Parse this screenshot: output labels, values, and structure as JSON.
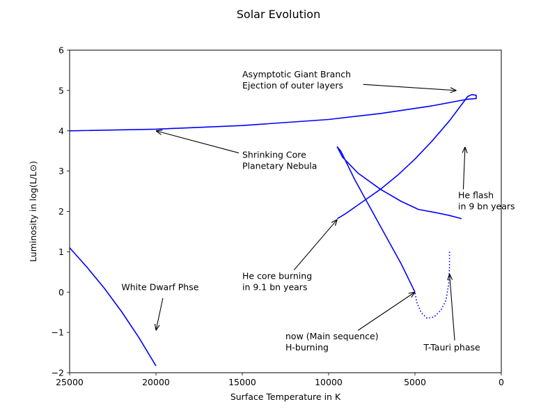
{
  "chart_data": {
    "type": "line",
    "title": "Solar Evolution",
    "xlabel": "Surface Temperature in K",
    "ylabel": "Luminosity in log(L/L⊙)",
    "xlim": [
      25000,
      0
    ],
    "ylim": [
      -2,
      6
    ],
    "x_inverted": true,
    "xticks": [
      25000,
      20000,
      15000,
      10000,
      5000,
      0
    ],
    "xtick_labels": [
      "25000",
      "20000",
      "15000",
      "10000",
      "5000",
      "0"
    ],
    "yticks": [
      -2,
      -1,
      0,
      1,
      2,
      3,
      4,
      5,
      6
    ],
    "ytick_labels": [
      "−2",
      "−1",
      "0",
      "1",
      "2",
      "3",
      "4",
      "5",
      "6"
    ],
    "grid": false,
    "line_color": "#0000ff",
    "series": [
      {
        "style": "dotted",
        "x": [
          3000,
          3000,
          3050,
          3200,
          3500,
          3900,
          4300,
          4650,
          4900,
          5000
        ],
        "y": [
          1.0,
          0.6,
          0.2,
          -0.2,
          -0.45,
          -0.62,
          -0.65,
          -0.5,
          -0.25,
          0.0
        ]
      },
      {
        "style": "solid",
        "x": [
          5000,
          5800,
          6700,
          7600,
          8500,
          9300,
          9500,
          9200,
          8300,
          7000,
          5800,
          4800,
          3800,
          3000,
          2300
        ],
        "y": [
          0.0,
          0.7,
          1.4,
          2.1,
          2.8,
          3.5,
          3.6,
          3.35,
          2.95,
          2.55,
          2.25,
          2.05,
          1.97,
          1.9,
          1.82
        ]
      },
      {
        "style": "solid",
        "x": [
          9500,
          9000,
          8000,
          7000,
          6000,
          5000,
          4000,
          3000,
          2300,
          1950,
          1700,
          1450,
          1450,
          2000,
          4000,
          7000,
          10000,
          15000,
          20000,
          25000
        ],
        "y": [
          1.82,
          1.95,
          2.25,
          2.55,
          2.9,
          3.3,
          3.75,
          4.25,
          4.65,
          4.85,
          4.9,
          4.88,
          4.8,
          4.78,
          4.62,
          4.43,
          4.28,
          4.13,
          4.04,
          4.0
        ]
      },
      {
        "style": "solid",
        "x": [
          25000,
          24000,
          23000,
          22000,
          21000,
          20000
        ],
        "y": [
          1.1,
          0.62,
          0.1,
          -0.48,
          -1.12,
          -1.83
        ]
      }
    ],
    "annotations": [
      {
        "lines": [
          "Asymptotic Giant Branch",
          "Ejection of outer layers"
        ],
        "text_x": 15000,
        "text_y": 5.05,
        "arrow_from": [
          8000,
          5.15
        ],
        "arrow_to": [
          2600,
          5.0
        ]
      },
      {
        "lines": [
          "Shrinking Core",
          "Planetary Nebula"
        ],
        "text_x": 15000,
        "text_y": 3.05,
        "arrow_from": [
          15200,
          3.45
        ],
        "arrow_to": [
          20000,
          4.0
        ]
      },
      {
        "lines": [
          "He flash",
          "in 9 bn years"
        ],
        "text_x": 2500,
        "text_y": 2.05,
        "arrow_from": [
          2200,
          2.55
        ],
        "arrow_to": [
          2100,
          3.6
        ]
      },
      {
        "lines": [
          "He core burning",
          "in 9.1 bn years"
        ],
        "text_x": 15000,
        "text_y": 0.05,
        "arrow_from": [
          12000,
          0.55
        ],
        "arrow_to": [
          9500,
          1.8
        ]
      },
      {
        "lines": [
          "White Dwarf Phse"
        ],
        "text_x": 22000,
        "text_y": 0.05,
        "arrow_from": [
          19600,
          -0.15
        ],
        "arrow_to": [
          20000,
          -0.95
        ]
      },
      {
        "lines": [
          "now (Main sequence)",
          "H-burning"
        ],
        "text_x": 12500,
        "text_y": -1.45,
        "arrow_from": [
          8300,
          -0.95
        ],
        "arrow_to": [
          5000,
          0.0
        ]
      },
      {
        "lines": [
          "T-Tauri phase"
        ],
        "text_x": 4500,
        "text_y": -1.45,
        "arrow_from": [
          2700,
          -1.2
        ],
        "arrow_to": [
          3000,
          0.45
        ]
      }
    ]
  }
}
